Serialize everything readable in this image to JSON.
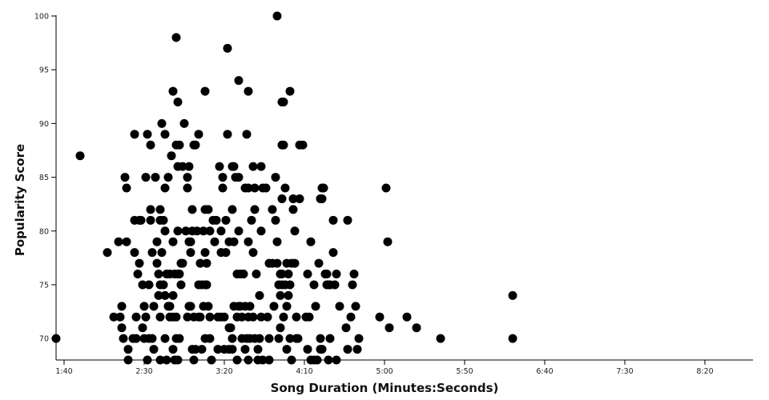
{
  "chart_data": {
    "type": "scatter",
    "xlabel": "Song Duration (Minutes:Seconds)",
    "ylabel": "Popularity Score",
    "x_unit": "seconds",
    "xlim": [
      95,
      530
    ],
    "ylim": [
      68,
      100
    ],
    "grid": false,
    "x_ticks": [
      {
        "value": 100,
        "label": "1:40"
      },
      {
        "value": 150,
        "label": "2:30"
      },
      {
        "value": 200,
        "label": "3:20"
      },
      {
        "value": 250,
        "label": "4:10"
      },
      {
        "value": 300,
        "label": "5:00"
      },
      {
        "value": 350,
        "label": "5:50"
      },
      {
        "value": 400,
        "label": "6:40"
      },
      {
        "value": 450,
        "label": "7:30"
      },
      {
        "value": 500,
        "label": "8:20"
      }
    ],
    "y_ticks": [
      {
        "value": 70,
        "label": "70"
      },
      {
        "value": 75,
        "label": "75"
      },
      {
        "value": 80,
        "label": "80"
      },
      {
        "value": 85,
        "label": "85"
      },
      {
        "value": 90,
        "label": "90"
      },
      {
        "value": 95,
        "label": "95"
      },
      {
        "value": 100,
        "label": "100"
      }
    ],
    "points": [
      [
        95,
        70
      ],
      [
        110,
        87
      ],
      [
        127,
        78
      ],
      [
        131,
        72
      ],
      [
        134,
        79
      ],
      [
        135,
        72
      ],
      [
        136,
        73
      ],
      [
        136,
        71
      ],
      [
        137,
        70
      ],
      [
        138,
        85
      ],
      [
        139,
        84
      ],
      [
        139,
        79
      ],
      [
        140,
        69
      ],
      [
        140,
        68
      ],
      [
        143,
        70
      ],
      [
        144,
        89
      ],
      [
        144,
        81
      ],
      [
        144,
        78
      ],
      [
        145,
        72
      ],
      [
        145,
        70
      ],
      [
        146,
        76
      ],
      [
        147,
        77
      ],
      [
        147,
        81
      ],
      [
        148,
        81
      ],
      [
        149,
        75
      ],
      [
        149,
        71
      ],
      [
        150,
        73
      ],
      [
        150,
        70
      ],
      [
        151,
        85
      ],
      [
        151,
        72
      ],
      [
        152,
        89
      ],
      [
        152,
        68
      ],
      [
        153,
        75
      ],
      [
        153,
        70
      ],
      [
        154,
        88
      ],
      [
        154,
        82
      ],
      [
        154,
        81
      ],
      [
        155,
        78
      ],
      [
        155,
        70
      ],
      [
        156,
        73
      ],
      [
        156,
        69
      ],
      [
        157,
        85
      ],
      [
        158,
        79
      ],
      [
        158,
        77
      ],
      [
        159,
        76
      ],
      [
        159,
        74
      ],
      [
        160,
        82
      ],
      [
        160,
        81
      ],
      [
        160,
        75
      ],
      [
        160,
        72
      ],
      [
        160,
        68
      ],
      [
        161,
        90
      ],
      [
        161,
        78
      ],
      [
        162,
        81
      ],
      [
        162,
        75
      ],
      [
        163,
        89
      ],
      [
        163,
        84
      ],
      [
        163,
        80
      ],
      [
        163,
        74
      ],
      [
        163,
        70
      ],
      [
        164,
        76
      ],
      [
        164,
        68
      ],
      [
        165,
        85
      ],
      [
        165,
        73
      ],
      [
        166,
        76
      ],
      [
        166,
        73
      ],
      [
        166,
        72
      ],
      [
        167,
        87
      ],
      [
        168,
        93
      ],
      [
        168,
        79
      ],
      [
        168,
        74
      ],
      [
        168,
        72
      ],
      [
        168,
        69
      ],
      [
        169,
        76
      ],
      [
        169,
        68
      ],
      [
        170,
        98
      ],
      [
        170,
        88
      ],
      [
        170,
        72
      ],
      [
        170,
        70
      ],
      [
        171,
        92
      ],
      [
        171,
        86
      ],
      [
        171,
        80
      ],
      [
        171,
        76
      ],
      [
        171,
        68
      ],
      [
        172,
        88
      ],
      [
        172,
        76
      ],
      [
        172,
        70
      ],
      [
        173,
        77
      ],
      [
        173,
        75
      ],
      [
        174,
        86
      ],
      [
        174,
        77
      ],
      [
        175,
        90
      ],
      [
        176,
        80
      ],
      [
        177,
        85
      ],
      [
        177,
        84
      ],
      [
        177,
        72
      ],
      [
        178,
        86
      ],
      [
        178,
        79
      ],
      [
        178,
        73
      ],
      [
        179,
        79
      ],
      [
        179,
        78
      ],
      [
        179,
        73
      ],
      [
        180,
        82
      ],
      [
        180,
        80
      ],
      [
        180,
        69
      ],
      [
        181,
        88
      ],
      [
        181,
        72
      ],
      [
        181,
        68
      ],
      [
        182,
        88
      ],
      [
        182,
        69
      ],
      [
        183,
        80
      ],
      [
        184,
        89
      ],
      [
        184,
        75
      ],
      [
        184,
        72
      ],
      [
        185,
        77
      ],
      [
        185,
        72
      ],
      [
        186,
        69
      ],
      [
        186,
        75
      ],
      [
        187,
        80
      ],
      [
        187,
        73
      ],
      [
        188,
        93
      ],
      [
        188,
        82
      ],
      [
        188,
        78
      ],
      [
        188,
        75
      ],
      [
        188,
        70
      ],
      [
        189,
        77
      ],
      [
        189,
        75
      ],
      [
        190,
        82
      ],
      [
        190,
        73
      ],
      [
        191,
        80
      ],
      [
        191,
        72
      ],
      [
        191,
        70
      ],
      [
        192,
        68
      ],
      [
        193,
        81
      ],
      [
        194,
        79
      ],
      [
        195,
        81
      ],
      [
        196,
        72
      ],
      [
        196,
        69
      ],
      [
        197,
        86
      ],
      [
        198,
        80
      ],
      [
        198,
        78
      ],
      [
        198,
        72
      ],
      [
        199,
        85
      ],
      [
        199,
        84
      ],
      [
        200,
        69
      ],
      [
        200,
        72
      ],
      [
        201,
        81
      ],
      [
        201,
        78
      ],
      [
        202,
        97
      ],
      [
        202,
        89
      ],
      [
        203,
        79
      ],
      [
        203,
        71
      ],
      [
        203,
        69
      ],
      [
        204,
        71
      ],
      [
        205,
        86
      ],
      [
        205,
        82
      ],
      [
        205,
        70
      ],
      [
        205,
        69
      ],
      [
        206,
        86
      ],
      [
        206,
        79
      ],
      [
        206,
        73
      ],
      [
        207,
        85
      ],
      [
        208,
        76
      ],
      [
        208,
        72
      ],
      [
        208,
        68
      ],
      [
        209,
        94
      ],
      [
        209,
        85
      ],
      [
        209,
        80
      ],
      [
        209,
        73
      ],
      [
        210,
        76
      ],
      [
        210,
        73
      ],
      [
        211,
        72
      ],
      [
        211,
        70
      ],
      [
        212,
        76
      ],
      [
        213,
        84
      ],
      [
        213,
        73
      ],
      [
        213,
        69
      ],
      [
        214,
        89
      ],
      [
        214,
        70
      ],
      [
        215,
        93
      ],
      [
        215,
        84
      ],
      [
        215,
        79
      ],
      [
        215,
        72
      ],
      [
        215,
        68
      ],
      [
        216,
        73
      ],
      [
        216,
        70
      ],
      [
        217,
        81
      ],
      [
        218,
        86
      ],
      [
        218,
        78
      ],
      [
        218,
        72
      ],
      [
        219,
        84
      ],
      [
        219,
        82
      ],
      [
        219,
        70
      ],
      [
        220,
        76
      ],
      [
        221,
        69
      ],
      [
        221,
        68
      ],
      [
        222,
        74
      ],
      [
        222,
        70
      ],
      [
        223,
        86
      ],
      [
        223,
        80
      ],
      [
        223,
        72
      ],
      [
        224,
        84
      ],
      [
        224,
        68
      ],
      [
        226,
        84
      ],
      [
        227,
        72
      ],
      [
        228,
        77
      ],
      [
        228,
        70
      ],
      [
        228,
        68
      ],
      [
        230,
        82
      ],
      [
        230,
        77
      ],
      [
        231,
        73
      ],
      [
        232,
        85
      ],
      [
        232,
        81
      ],
      [
        233,
        100
      ],
      [
        233,
        79
      ],
      [
        233,
        77
      ],
      [
        234,
        75
      ],
      [
        234,
        70
      ],
      [
        235,
        76
      ],
      [
        235,
        71
      ],
      [
        235,
        74
      ],
      [
        236,
        92
      ],
      [
        236,
        88
      ],
      [
        236,
        83
      ],
      [
        236,
        76
      ],
      [
        236,
        75
      ],
      [
        237,
        92
      ],
      [
        237,
        88
      ],
      [
        237,
        72
      ],
      [
        238,
        84
      ],
      [
        238,
        75
      ],
      [
        239,
        73
      ],
      [
        239,
        77
      ],
      [
        239,
        69
      ],
      [
        240,
        76
      ],
      [
        240,
        74
      ],
      [
        241,
        93
      ],
      [
        241,
        75
      ],
      [
        241,
        70
      ],
      [
        242,
        77
      ],
      [
        242,
        68
      ],
      [
        243,
        82
      ],
      [
        243,
        83
      ],
      [
        244,
        80
      ],
      [
        244,
        77
      ],
      [
        245,
        72
      ],
      [
        245,
        70
      ],
      [
        246,
        70
      ],
      [
        247,
        88
      ],
      [
        247,
        83
      ],
      [
        249,
        88
      ],
      [
        251,
        72
      ],
      [
        252,
        76
      ],
      [
        252,
        69
      ],
      [
        253,
        72
      ],
      [
        254,
        79
      ],
      [
        254,
        68
      ],
      [
        256,
        75
      ],
      [
        256,
        68
      ],
      [
        257,
        73
      ],
      [
        258,
        68
      ],
      [
        259,
        77
      ],
      [
        260,
        83
      ],
      [
        260,
        70
      ],
      [
        260,
        69
      ],
      [
        261,
        83
      ],
      [
        261,
        69
      ],
      [
        261,
        84
      ],
      [
        262,
        84
      ],
      [
        263,
        76
      ],
      [
        264,
        76
      ],
      [
        264,
        75
      ],
      [
        265,
        75
      ],
      [
        265,
        68
      ],
      [
        266,
        75
      ],
      [
        266,
        70
      ],
      [
        268,
        81
      ],
      [
        268,
        78
      ],
      [
        269,
        75
      ],
      [
        270,
        76
      ],
      [
        270,
        68
      ],
      [
        272,
        73
      ],
      [
        276,
        71
      ],
      [
        277,
        81
      ],
      [
        277,
        69
      ],
      [
        279,
        72
      ],
      [
        280,
        75
      ],
      [
        281,
        76
      ],
      [
        282,
        73
      ],
      [
        283,
        69
      ],
      [
        284,
        70
      ],
      [
        297,
        72
      ],
      [
        301,
        84
      ],
      [
        302,
        79
      ],
      [
        303,
        71
      ],
      [
        314,
        72
      ],
      [
        320,
        71
      ],
      [
        335,
        70
      ],
      [
        380,
        70
      ],
      [
        380,
        74
      ]
    ]
  }
}
